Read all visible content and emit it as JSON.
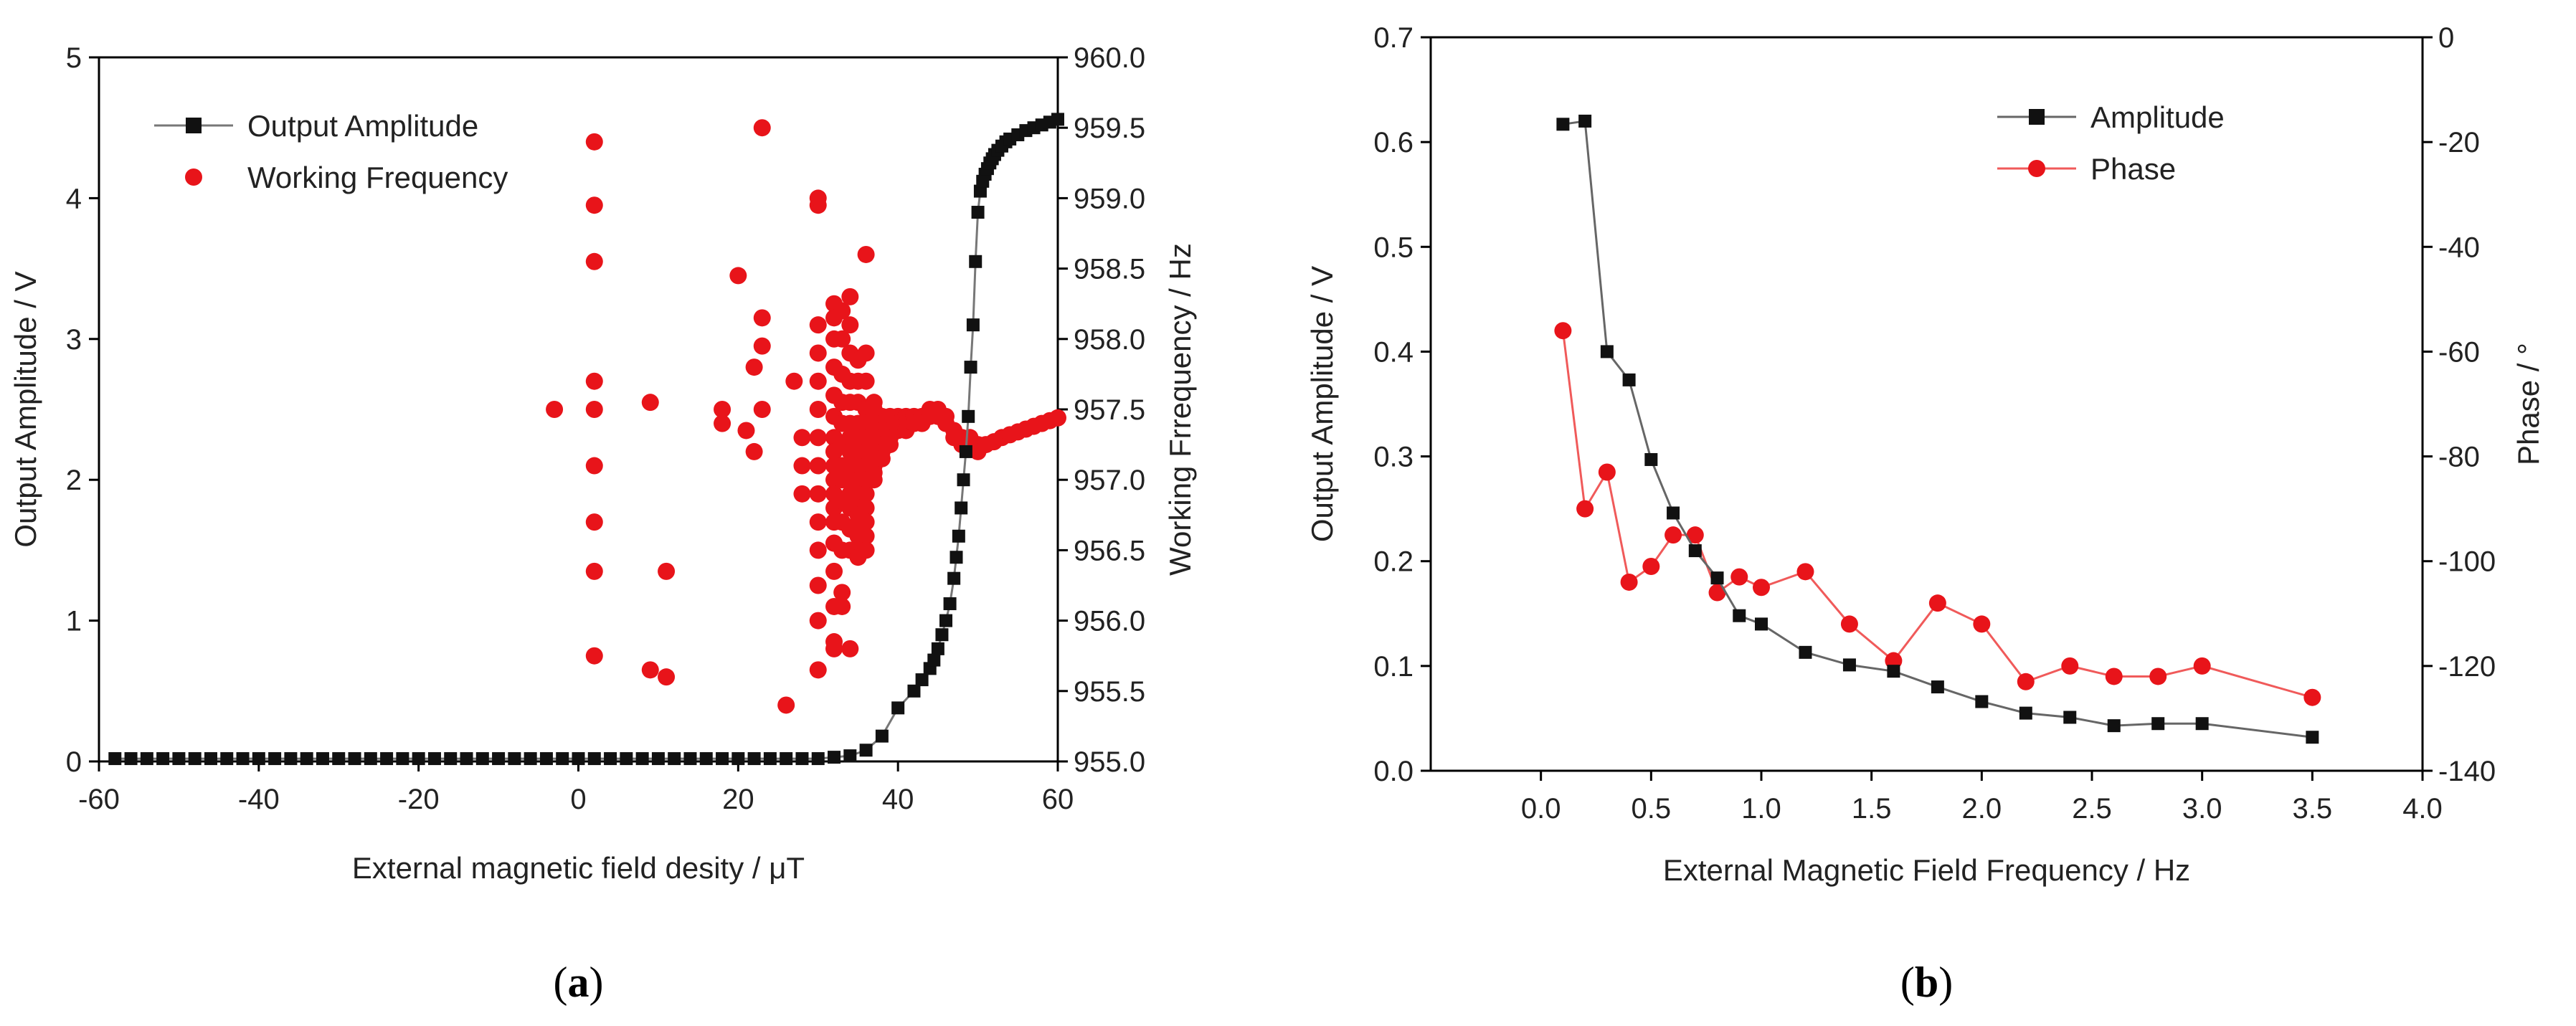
{
  "chart_data": [
    {
      "type": "scatter",
      "panel_label": {
        "open": "(",
        "letter": "a",
        "close": ")"
      },
      "xlabel": "External magnetic field desity / μT",
      "ylabel": "Output Amplitude / V",
      "y2label": "Working Frrequency / Hz",
      "xlim": [
        -60,
        60
      ],
      "ylim": [
        0,
        5
      ],
      "y2lim": [
        955.0,
        960.0
      ],
      "xticks": [
        "-60",
        "-40",
        "-20",
        "0",
        "20",
        "40",
        "60"
      ],
      "yticks": [
        "0",
        "1",
        "2",
        "3",
        "4",
        "5"
      ],
      "y2ticks": [
        "955.0",
        "955.5",
        "956.0",
        "956.5",
        "957.0",
        "957.5",
        "958.0",
        "958.5",
        "959.0",
        "959.5",
        "960.0"
      ],
      "legend_position": "top-left",
      "colors": {
        "amplitude": "#111111",
        "frequency": "#e8141a",
        "line": "#777777"
      },
      "series": [
        {
          "name": "Output Amplitude",
          "axis": "left",
          "marker": "square",
          "x": [
            -58,
            -56,
            -54,
            -52,
            -50,
            -48,
            -46,
            -44,
            -42,
            -40,
            -38,
            -36,
            -34,
            -32,
            -30,
            -28,
            -26,
            -24,
            -22,
            -20,
            -18,
            -16,
            -14,
            -12,
            -10,
            -8,
            -6,
            -4,
            -2,
            0,
            2,
            4,
            6,
            8,
            10,
            12,
            14,
            16,
            18,
            20,
            22,
            24,
            26,
            28,
            30,
            32,
            34,
            36,
            38,
            40,
            42,
            43,
            44,
            44.5,
            45,
            45.5,
            46,
            46.5,
            47,
            47.3,
            47.6,
            47.9,
            48.2,
            48.5,
            48.8,
            49.1,
            49.4,
            49.7,
            50,
            50.3,
            50.6,
            50.9,
            51.2,
            51.5,
            51.8,
            52.1,
            52.5,
            53,
            53.5,
            54,
            55,
            56,
            57,
            58,
            59,
            60
          ],
          "values": [
            0.02,
            0.02,
            0.02,
            0.02,
            0.02,
            0.02,
            0.02,
            0.02,
            0.02,
            0.02,
            0.02,
            0.02,
            0.02,
            0.02,
            0.02,
            0.02,
            0.02,
            0.02,
            0.02,
            0.02,
            0.02,
            0.02,
            0.02,
            0.02,
            0.02,
            0.02,
            0.02,
            0.02,
            0.02,
            0.02,
            0.02,
            0.02,
            0.02,
            0.02,
            0.02,
            0.02,
            0.02,
            0.02,
            0.02,
            0.02,
            0.02,
            0.02,
            0.02,
            0.02,
            0.02,
            0.03,
            0.04,
            0.08,
            0.18,
            0.38,
            0.5,
            0.58,
            0.66,
            0.72,
            0.8,
            0.9,
            1.0,
            1.12,
            1.3,
            1.45,
            1.6,
            1.8,
            2.0,
            2.2,
            2.45,
            2.8,
            3.1,
            3.55,
            3.9,
            4.05,
            4.12,
            4.17,
            4.21,
            4.25,
            4.28,
            4.31,
            4.34,
            4.37,
            4.4,
            4.42,
            4.45,
            4.48,
            4.5,
            4.52,
            4.54,
            4.56
          ]
        },
        {
          "name": "Working Frequency",
          "axis": "right",
          "marker": "circle",
          "x": [
            2,
            2,
            2,
            2,
            2,
            2,
            2,
            2,
            2,
            -3,
            9,
            11,
            9,
            11,
            18,
            18,
            20,
            21,
            22,
            22,
            23,
            23,
            23,
            23,
            26,
            27,
            28,
            28,
            28,
            30,
            30,
            30,
            30,
            30,
            30,
            30,
            30,
            30,
            30,
            30,
            30,
            30,
            30,
            32,
            32,
            32,
            32,
            32,
            32,
            32,
            32,
            32,
            32,
            32,
            32,
            32,
            32,
            32,
            32,
            32,
            32,
            32,
            32,
            33,
            33,
            33,
            33,
            33,
            33,
            33,
            33,
            33,
            33,
            33,
            33,
            33,
            34,
            34,
            34,
            34,
            34,
            34,
            34,
            34,
            34,
            34,
            34,
            34,
            34,
            34,
            34,
            35,
            35,
            35,
            35,
            35,
            35,
            35,
            35,
            35,
            35,
            35,
            35,
            35,
            35,
            35,
            36,
            36,
            36,
            36,
            36,
            36,
            36,
            36,
            36,
            36,
            36,
            36,
            36,
            36,
            37,
            37,
            37,
            37,
            37,
            37,
            37,
            37,
            37,
            37,
            37,
            37,
            38,
            38,
            38,
            38,
            38,
            38,
            38,
            39,
            39,
            39,
            39,
            39,
            40,
            40,
            40,
            41,
            41,
            41,
            42,
            42,
            43,
            43,
            44,
            44,
            45,
            45,
            46,
            46,
            47,
            47,
            48,
            48,
            49,
            49,
            50,
            50,
            51,
            52,
            53,
            54,
            55,
            56,
            57,
            58,
            59,
            60
          ],
          "values": [
            959.4,
            958.95,
            958.55,
            957.7,
            957.5,
            957.1,
            956.7,
            956.35,
            955.75,
            957.5,
            957.55,
            956.35,
            955.65,
            955.6,
            957.5,
            957.4,
            958.45,
            957.35,
            957.8,
            957.2,
            959.5,
            958.15,
            957.95,
            957.5,
            955.4,
            957.7,
            957.3,
            957.1,
            956.9,
            958.95,
            959.0,
            958.1,
            957.9,
            957.7,
            957.5,
            957.3,
            957.1,
            956.9,
            956.7,
            956.5,
            956.25,
            956.0,
            955.65,
            958.25,
            958.15,
            958.0,
            957.8,
            957.6,
            957.45,
            957.3,
            957.2,
            957.1,
            957.0,
            956.9,
            956.8,
            956.7,
            956.55,
            956.35,
            956.1,
            955.8,
            955.85,
            956.55,
            957.2,
            958.2,
            958.0,
            957.75,
            957.55,
            957.4,
            957.25,
            957.1,
            957.0,
            956.85,
            956.7,
            956.5,
            956.2,
            956.1,
            958.3,
            958.1,
            957.9,
            957.7,
            957.55,
            957.4,
            957.3,
            957.2,
            957.1,
            957.0,
            956.9,
            956.8,
            956.65,
            956.5,
            955.8,
            957.85,
            957.7,
            957.55,
            957.4,
            957.3,
            957.2,
            957.1,
            957.0,
            956.9,
            956.8,
            956.75,
            956.7,
            956.6,
            956.5,
            956.45,
            958.6,
            957.9,
            957.7,
            957.5,
            957.4,
            957.3,
            957.2,
            957.1,
            957.0,
            956.9,
            956.8,
            956.7,
            956.6,
            956.5,
            957.55,
            957.5,
            957.45,
            957.4,
            957.35,
            957.3,
            957.25,
            957.2,
            957.15,
            957.1,
            957.05,
            957.0,
            957.45,
            957.4,
            957.35,
            957.3,
            957.25,
            957.2,
            957.15,
            957.45,
            957.4,
            957.35,
            957.3,
            957.25,
            957.45,
            957.4,
            957.35,
            957.45,
            957.4,
            957.35,
            957.45,
            957.4,
            957.45,
            957.4,
            957.5,
            957.45,
            957.5,
            957.45,
            957.45,
            957.4,
            957.35,
            957.3,
            957.3,
            957.25,
            957.3,
            957.25,
            957.25,
            957.2,
            957.25,
            957.27,
            957.3,
            957.32,
            957.34,
            957.36,
            957.38,
            957.4,
            957.42,
            957.44
          ]
        }
      ]
    },
    {
      "type": "line",
      "panel_label": {
        "open": "(",
        "letter": "b",
        "close": ")"
      },
      "xlabel": "External Magnetic Field Frequency / Hz",
      "ylabel": "Output Amplitude / V",
      "y2label": "Phase / °",
      "xlim": [
        -0.5,
        4.0
      ],
      "ylim": [
        0,
        0.7
      ],
      "y2lim": [
        -140,
        0
      ],
      "xticks": [
        "0.0",
        "0.5",
        "1.0",
        "1.5",
        "2.0",
        "2.5",
        "3.0",
        "3.5",
        "4.0"
      ],
      "yticks": [
        "0.0",
        "0.1",
        "0.2",
        "0.3",
        "0.4",
        "0.5",
        "0.6",
        "0.7"
      ],
      "y2ticks": [
        "-140",
        "-120",
        "-100",
        "-80",
        "-60",
        "-40",
        "-20",
        "0"
      ],
      "legend_position": "top-right",
      "colors": {
        "amplitude": "#111111",
        "phase": "#e8141a",
        "amplitude_line": "#666666",
        "phase_line": "#f05a5a"
      },
      "series": [
        {
          "name": "Amplitude",
          "axis": "left",
          "marker": "square",
          "x": [
            0.1,
            0.2,
            0.3,
            0.4,
            0.5,
            0.6,
            0.7,
            0.8,
            0.9,
            1.0,
            1.2,
            1.4,
            1.6,
            1.8,
            2.0,
            2.2,
            2.4,
            2.6,
            2.8,
            3.0,
            3.5
          ],
          "values": [
            0.617,
            0.62,
            0.4,
            0.373,
            0.297,
            0.246,
            0.21,
            0.184,
            0.148,
            0.14,
            0.113,
            0.101,
            0.095,
            0.08,
            0.066,
            0.055,
            0.051,
            0.043,
            0.045,
            0.045,
            0.032
          ]
        },
        {
          "name": "Phase",
          "axis": "right",
          "marker": "circle",
          "x": [
            0.1,
            0.2,
            0.3,
            0.4,
            0.5,
            0.6,
            0.7,
            0.8,
            0.9,
            1.0,
            1.2,
            1.4,
            1.6,
            1.8,
            2.0,
            2.2,
            2.4,
            2.6,
            2.8,
            3.0,
            3.5
          ],
          "values": [
            -56,
            -90,
            -83,
            -104,
            -101,
            -95,
            -95,
            -106,
            -103,
            -105,
            -102,
            -112,
            -119,
            -108,
            -112,
            -123,
            -120,
            -122,
            -122,
            -120,
            -126
          ]
        }
      ]
    }
  ]
}
